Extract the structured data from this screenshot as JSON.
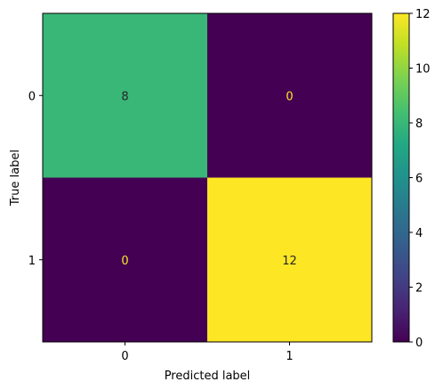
{
  "chart_data": {
    "type": "heatmap",
    "title": "",
    "xlabel": "Predicted label",
    "ylabel": "True label",
    "x_tick_labels": [
      "0",
      "1"
    ],
    "y_tick_labels": [
      "0",
      "1"
    ],
    "values": [
      [
        8,
        0
      ],
      [
        0,
        12
      ]
    ],
    "value_labels": [
      [
        "8",
        "0"
      ],
      [
        "0",
        "12"
      ]
    ],
    "colorscale": "viridis",
    "colorbar": {
      "range": [
        0,
        12
      ],
      "tick_labels": [
        "0",
        "2",
        "4",
        "6",
        "8",
        "10",
        "12"
      ],
      "ticks": [
        0,
        2,
        4,
        6,
        8,
        10,
        12
      ]
    },
    "grid": false
  }
}
